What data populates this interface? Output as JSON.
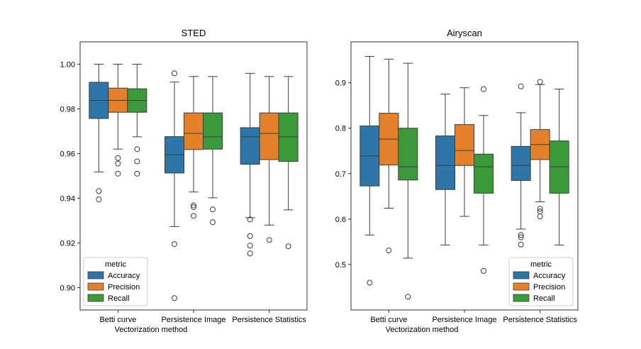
{
  "colors": {
    "Accuracy": "#2e75a8",
    "Precision": "#e6812b",
    "Recall": "#3a9a3a"
  },
  "chart_data": [
    {
      "type": "box",
      "title": "STED",
      "xlabel": "Vectorization method",
      "ylabel": "",
      "ylim": [
        0.89,
        1.01
      ],
      "yticks": [
        "0.90",
        "0.92",
        "0.94",
        "0.96",
        "0.98",
        "1.00"
      ],
      "ytick_values": [
        0.9,
        0.92,
        0.94,
        0.96,
        0.98,
        1.0
      ],
      "categories": [
        "Betti curve",
        "Persistence Image",
        "Persistence Statistics"
      ],
      "legend": {
        "title": "metric",
        "placement": "bottom-left",
        "entries": [
          "Accuracy",
          "Precision",
          "Recall"
        ]
      },
      "series": [
        {
          "name": "Accuracy",
          "boxes": [
            {
              "whislo": 0.9518,
              "q1": 0.9757,
              "med": 0.9838,
              "q3": 0.9919,
              "whishi": 1.0,
              "fliers": [
                0.9432,
                0.9395
              ]
            },
            {
              "whislo": 0.9273,
              "q1": 0.9513,
              "med": 0.9595,
              "q3": 0.9676,
              "whishi": 0.992,
              "fliers": [
                0.9959,
                0.9195,
                0.8953
              ]
            },
            {
              "whislo": 0.9313,
              "q1": 0.9552,
              "med": 0.9675,
              "q3": 0.9716,
              "whishi": 0.9959,
              "fliers": [
                0.9305,
                0.9231,
                0.9188,
                0.9153
              ]
            }
          ]
        },
        {
          "name": "Precision",
          "boxes": [
            {
              "whislo": 0.962,
              "q1": 0.9785,
              "med": 0.9838,
              "q3": 0.9893,
              "whishi": 1.0,
              "fliers": [
                0.9555,
                0.958,
                0.951
              ]
            },
            {
              "whislo": 0.9428,
              "q1": 0.9618,
              "med": 0.969,
              "q3": 0.9782,
              "whishi": 0.9945,
              "fliers": [
                0.9368,
                0.936,
                0.9321
              ]
            },
            {
              "whislo": 0.928,
              "q1": 0.9573,
              "med": 0.969,
              "q3": 0.9782,
              "whishi": 0.9945,
              "fliers": [
                0.9213
              ]
            }
          ]
        },
        {
          "name": "Recall",
          "boxes": [
            {
              "whislo": 0.9675,
              "q1": 0.9785,
              "med": 0.9838,
              "q3": 0.989,
              "whishi": 1.0,
              "fliers": [
                0.962,
                0.9565,
                0.951
              ]
            },
            {
              "whislo": 0.9402,
              "q1": 0.962,
              "med": 0.9675,
              "q3": 0.9782,
              "whishi": 0.9945,
              "fliers": [
                0.935,
                0.9293
              ]
            },
            {
              "whislo": 0.9348,
              "q1": 0.9565,
              "med": 0.9675,
              "q3": 0.9782,
              "whishi": 0.9945,
              "fliers": [
                0.9185
              ]
            }
          ]
        }
      ]
    },
    {
      "type": "box",
      "title": "Airyscan",
      "xlabel": "Vectorization method",
      "ylabel": "",
      "ylim": [
        0.4,
        0.99
      ],
      "yticks": [
        "0.5",
        "0.6",
        "0.7",
        "0.8",
        "0.9"
      ],
      "ytick_values": [
        0.5,
        0.6,
        0.7,
        0.8,
        0.9
      ],
      "categories": [
        "Betti curve",
        "Persistence Image",
        "Persistence Statistics"
      ],
      "legend": {
        "title": "metric",
        "placement": "bottom-right",
        "entries": [
          "Accuracy",
          "Precision",
          "Recall"
        ]
      },
      "series": [
        {
          "name": "Accuracy",
          "boxes": [
            {
              "whislo": 0.565,
              "q1": 0.673,
              "med": 0.739,
              "q3": 0.805,
              "whishi": 0.958,
              "fliers": [
                0.46
              ]
            },
            {
              "whislo": 0.543,
              "q1": 0.665,
              "med": 0.718,
              "q3": 0.783,
              "whishi": 0.875,
              "fliers": []
            },
            {
              "whislo": 0.578,
              "q1": 0.685,
              "med": 0.718,
              "q3": 0.76,
              "whishi": 0.834,
              "fliers": [
                0.892,
                0.565,
                0.56,
                0.544
              ]
            }
          ]
        },
        {
          "name": "Precision",
          "boxes": [
            {
              "whislo": 0.624,
              "q1": 0.719,
              "med": 0.776,
              "q3": 0.833,
              "whishi": 0.952,
              "fliers": [
                0.531
              ]
            },
            {
              "whislo": 0.606,
              "q1": 0.718,
              "med": 0.751,
              "q3": 0.808,
              "whishi": 0.889,
              "fliers": []
            },
            {
              "whislo": 0.638,
              "q1": 0.731,
              "med": 0.764,
              "q3": 0.797,
              "whishi": 0.896,
              "fliers": [
                0.902,
                0.623,
                0.617,
                0.606
              ]
            }
          ]
        },
        {
          "name": "Recall",
          "boxes": [
            {
              "whislo": 0.514,
              "q1": 0.686,
              "med": 0.715,
              "q3": 0.8,
              "whishi": 0.943,
              "fliers": [
                0.429
              ]
            },
            {
              "whislo": 0.543,
              "q1": 0.657,
              "med": 0.715,
              "q3": 0.743,
              "whishi": 0.828,
              "fliers": [
                0.886,
                0.486
              ]
            },
            {
              "whislo": 0.543,
              "q1": 0.657,
              "med": 0.715,
              "q3": 0.772,
              "whishi": 0.886,
              "fliers": []
            }
          ]
        }
      ]
    }
  ]
}
